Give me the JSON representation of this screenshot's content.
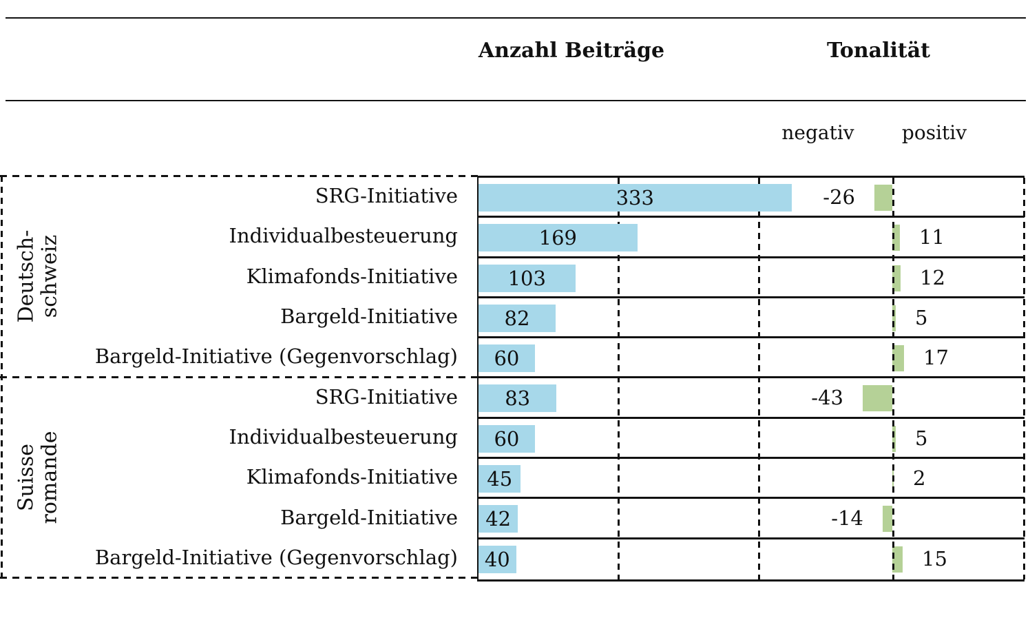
{
  "chart_data": {
    "type": "bar",
    "title": "",
    "metrics": [
      {
        "name": "Anzahl Beiträge"
      },
      {
        "name": "Tonalität",
        "negative_label": "negativ",
        "positive_label": "positiv"
      }
    ],
    "groups": [
      {
        "region": "Deutschschweiz",
        "region_lines": [
          "Deutsch-",
          "schweiz"
        ],
        "rows": [
          {
            "label": "SRG-Initiative",
            "anzahl_beitraege": 333,
            "tonalitaet": -26
          },
          {
            "label": "Individualbesteuerung",
            "anzahl_beitraege": 169,
            "tonalitaet": 11
          },
          {
            "label": "Klimafonds-Initiative",
            "anzahl_beitraege": 103,
            "tonalitaet": 12
          },
          {
            "label": "Bargeld-Initiative",
            "anzahl_beitraege": 82,
            "tonalitaet": 5
          },
          {
            "label": "Bargeld-Initiative (Gegenvorschlag)",
            "anzahl_beitraege": 60,
            "tonalitaet": 17
          }
        ]
      },
      {
        "region": "Suisse romande",
        "region_lines": [
          "Suisse",
          "romande"
        ],
        "rows": [
          {
            "label": "SRG-Initiative",
            "anzahl_beitraege": 83,
            "tonalitaet": -43
          },
          {
            "label": "Individualbesteuerung",
            "anzahl_beitraege": 60,
            "tonalitaet": 5
          },
          {
            "label": "Klimafonds-Initiative",
            "anzahl_beitraege": 45,
            "tonalitaet": 2
          },
          {
            "label": "Bargeld-Initiative",
            "anzahl_beitraege": 42,
            "tonalitaet": -14
          },
          {
            "label": "Bargeld-Initiative (Gegenvorschlag)",
            "anzahl_beitraege": 40,
            "tonalitaet": 15
          }
        ]
      }
    ],
    "colors": {
      "anzahl_bar": "#a7d8ea",
      "tonalitaet_bar": "#b5d197",
      "line": "#111111"
    },
    "axes": {
      "beitraege_gridlines_estimated": [
        150,
        300
      ],
      "tonalitaet_scale": "zero line between negativ and positiv",
      "grid": "dashed vertical lines",
      "legend": "none"
    }
  }
}
